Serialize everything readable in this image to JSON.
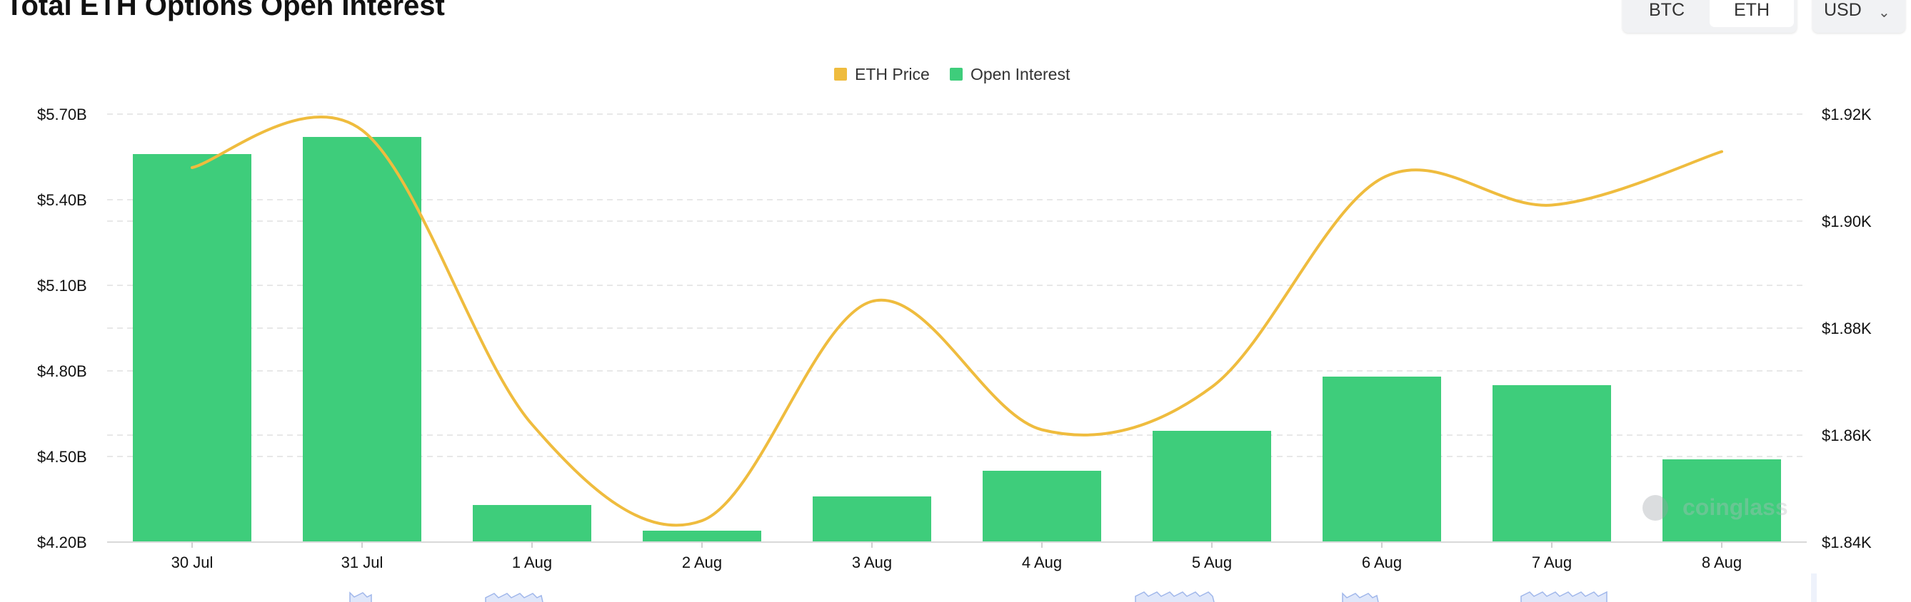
{
  "header": {
    "title": "Total ETH Options Open Interest",
    "tabs": [
      "BTC",
      "ETH"
    ],
    "active_tab": "ETH",
    "currency": {
      "selected": "USD"
    }
  },
  "watermark": "coinglass",
  "colors": {
    "bars": "#3ecd7b",
    "price_line": "#efbc3e",
    "grid": "#e8e8e8"
  },
  "chart_data": {
    "type": "bar",
    "categories": [
      "30 Jul",
      "31 Jul",
      "1 Aug",
      "2 Aug",
      "3 Aug",
      "4 Aug",
      "5 Aug",
      "6 Aug",
      "7 Aug",
      "8 Aug"
    ],
    "series": [
      {
        "name": "Open Interest",
        "type": "bar",
        "axis": "left",
        "color": "#3ecd7b",
        "values": [
          5.56,
          5.62,
          4.33,
          4.24,
          4.36,
          4.45,
          4.59,
          4.78,
          4.75,
          4.49
        ]
      },
      {
        "name": "ETH Price",
        "type": "line",
        "axis": "right",
        "color": "#efbc3e",
        "values": [
          1910,
          1917,
          1862,
          1844,
          1885,
          1861,
          1869,
          1908,
          1903,
          1913
        ]
      }
    ],
    "y_left": {
      "ticks": [
        "$5.70B",
        "$5.40B",
        "$5.10B",
        "$4.80B",
        "$4.50B",
        "$4.20B"
      ],
      "range": [
        4.2,
        5.7
      ]
    },
    "y_right": {
      "ticks": [
        "$1.92K",
        "$1.90K",
        "$1.88K",
        "$1.86K",
        "$1.84K"
      ],
      "range": [
        1840,
        1920
      ]
    },
    "legend": {
      "position": "top-center",
      "entries": [
        "ETH Price",
        "Open Interest"
      ]
    },
    "grid": true
  }
}
